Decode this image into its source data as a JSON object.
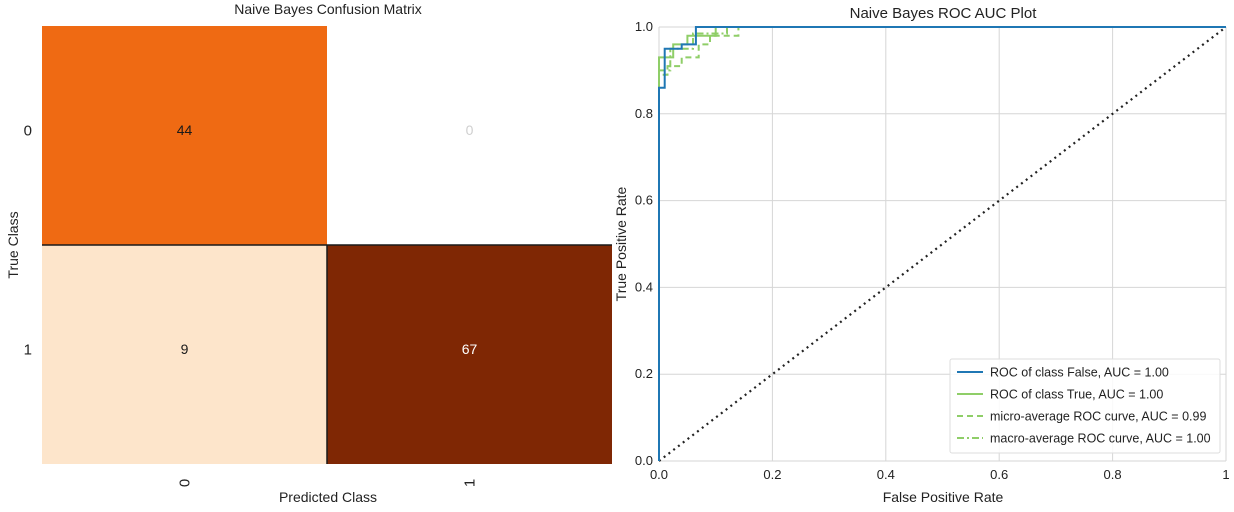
{
  "chart_data": [
    {
      "type": "heatmap",
      "title": "Naive Bayes Confusion Matrix",
      "xlabel": "Predicted Class",
      "ylabel": "True Class",
      "x_categories": [
        "0",
        "1"
      ],
      "y_categories": [
        "0",
        "1"
      ],
      "cells": [
        {
          "row": 0,
          "col": 0,
          "label": "44",
          "value": 44,
          "color": "#ef6a13",
          "text_color": "#1a1a1a"
        },
        {
          "row": 0,
          "col": 1,
          "label": "0",
          "value": 0,
          "color": "#ffffff",
          "text_color": "#cfcfcf"
        },
        {
          "row": 1,
          "col": 0,
          "label": "9",
          "value": 9,
          "color": "#fde5cb",
          "text_color": "#1a1a1a"
        },
        {
          "row": 1,
          "col": 1,
          "label": "67",
          "value": 67,
          "color": "#7f2704",
          "text_color": "#ffffff"
        }
      ]
    },
    {
      "type": "line",
      "title": "Naive Bayes ROC AUC Plot",
      "xlabel": "False Positive Rate",
      "ylabel": "True Positive Rate",
      "xlim": [
        0,
        1
      ],
      "ylim": [
        0,
        1
      ],
      "xticks": [
        "0.0",
        "0.2",
        "0.4",
        "0.6",
        "0.8",
        "1"
      ],
      "yticks": [
        "0.0",
        "0.2",
        "0.4",
        "0.6",
        "0.8",
        "1.0"
      ],
      "grid": true,
      "legend_position": "bottom-right",
      "series": [
        {
          "name": "ROC of class False, AUC = 1.00",
          "color": "#1f77b4",
          "dash": "solid",
          "points": [
            [
              0,
              0
            ],
            [
              0,
              0.86
            ],
            [
              0.01,
              0.86
            ],
            [
              0.01,
              0.95
            ],
            [
              0.04,
              0.95
            ],
            [
              0.04,
              0.96
            ],
            [
              0.065,
              0.96
            ],
            [
              0.065,
              1.0
            ],
            [
              1,
              1
            ]
          ]
        },
        {
          "name": "ROC of class True, AUC = 1.00",
          "color": "#8fce68",
          "dash": "solid",
          "points": [
            [
              0,
              0
            ],
            [
              0,
              0.93
            ],
            [
              0.025,
              0.93
            ],
            [
              0.025,
              0.96
            ],
            [
              0.05,
              0.96
            ],
            [
              0.05,
              0.98
            ],
            [
              0.1,
              0.98
            ],
            [
              0.1,
              1.0
            ],
            [
              1,
              1
            ]
          ]
        },
        {
          "name": "micro-average ROC curve, AUC = 0.99",
          "color": "#8fce68",
          "dash": "dashed",
          "points": [
            [
              0,
              0
            ],
            [
              0,
              0.89
            ],
            [
              0.015,
              0.89
            ],
            [
              0.015,
              0.91
            ],
            [
              0.04,
              0.91
            ],
            [
              0.04,
              0.93
            ],
            [
              0.07,
              0.93
            ],
            [
              0.07,
              0.96
            ],
            [
              0.09,
              0.96
            ],
            [
              0.09,
              0.98
            ],
            [
              0.14,
              0.98
            ],
            [
              0.14,
              1.0
            ],
            [
              1,
              1
            ]
          ]
        },
        {
          "name": "macro-average ROC curve, AUC = 1.00",
          "color": "#8fce68",
          "dash": "dashdot",
          "points": [
            [
              0,
              0
            ],
            [
              0,
              0.9
            ],
            [
              0.02,
              0.9
            ],
            [
              0.02,
              0.95
            ],
            [
              0.06,
              0.95
            ],
            [
              0.06,
              0.985
            ],
            [
              0.12,
              0.985
            ],
            [
              0.12,
              1.0
            ],
            [
              1,
              1
            ]
          ]
        }
      ],
      "reference_line": {
        "points": [
          [
            0,
            0
          ],
          [
            1,
            1
          ]
        ],
        "color": "#222222",
        "dash": "dotted"
      }
    }
  ]
}
